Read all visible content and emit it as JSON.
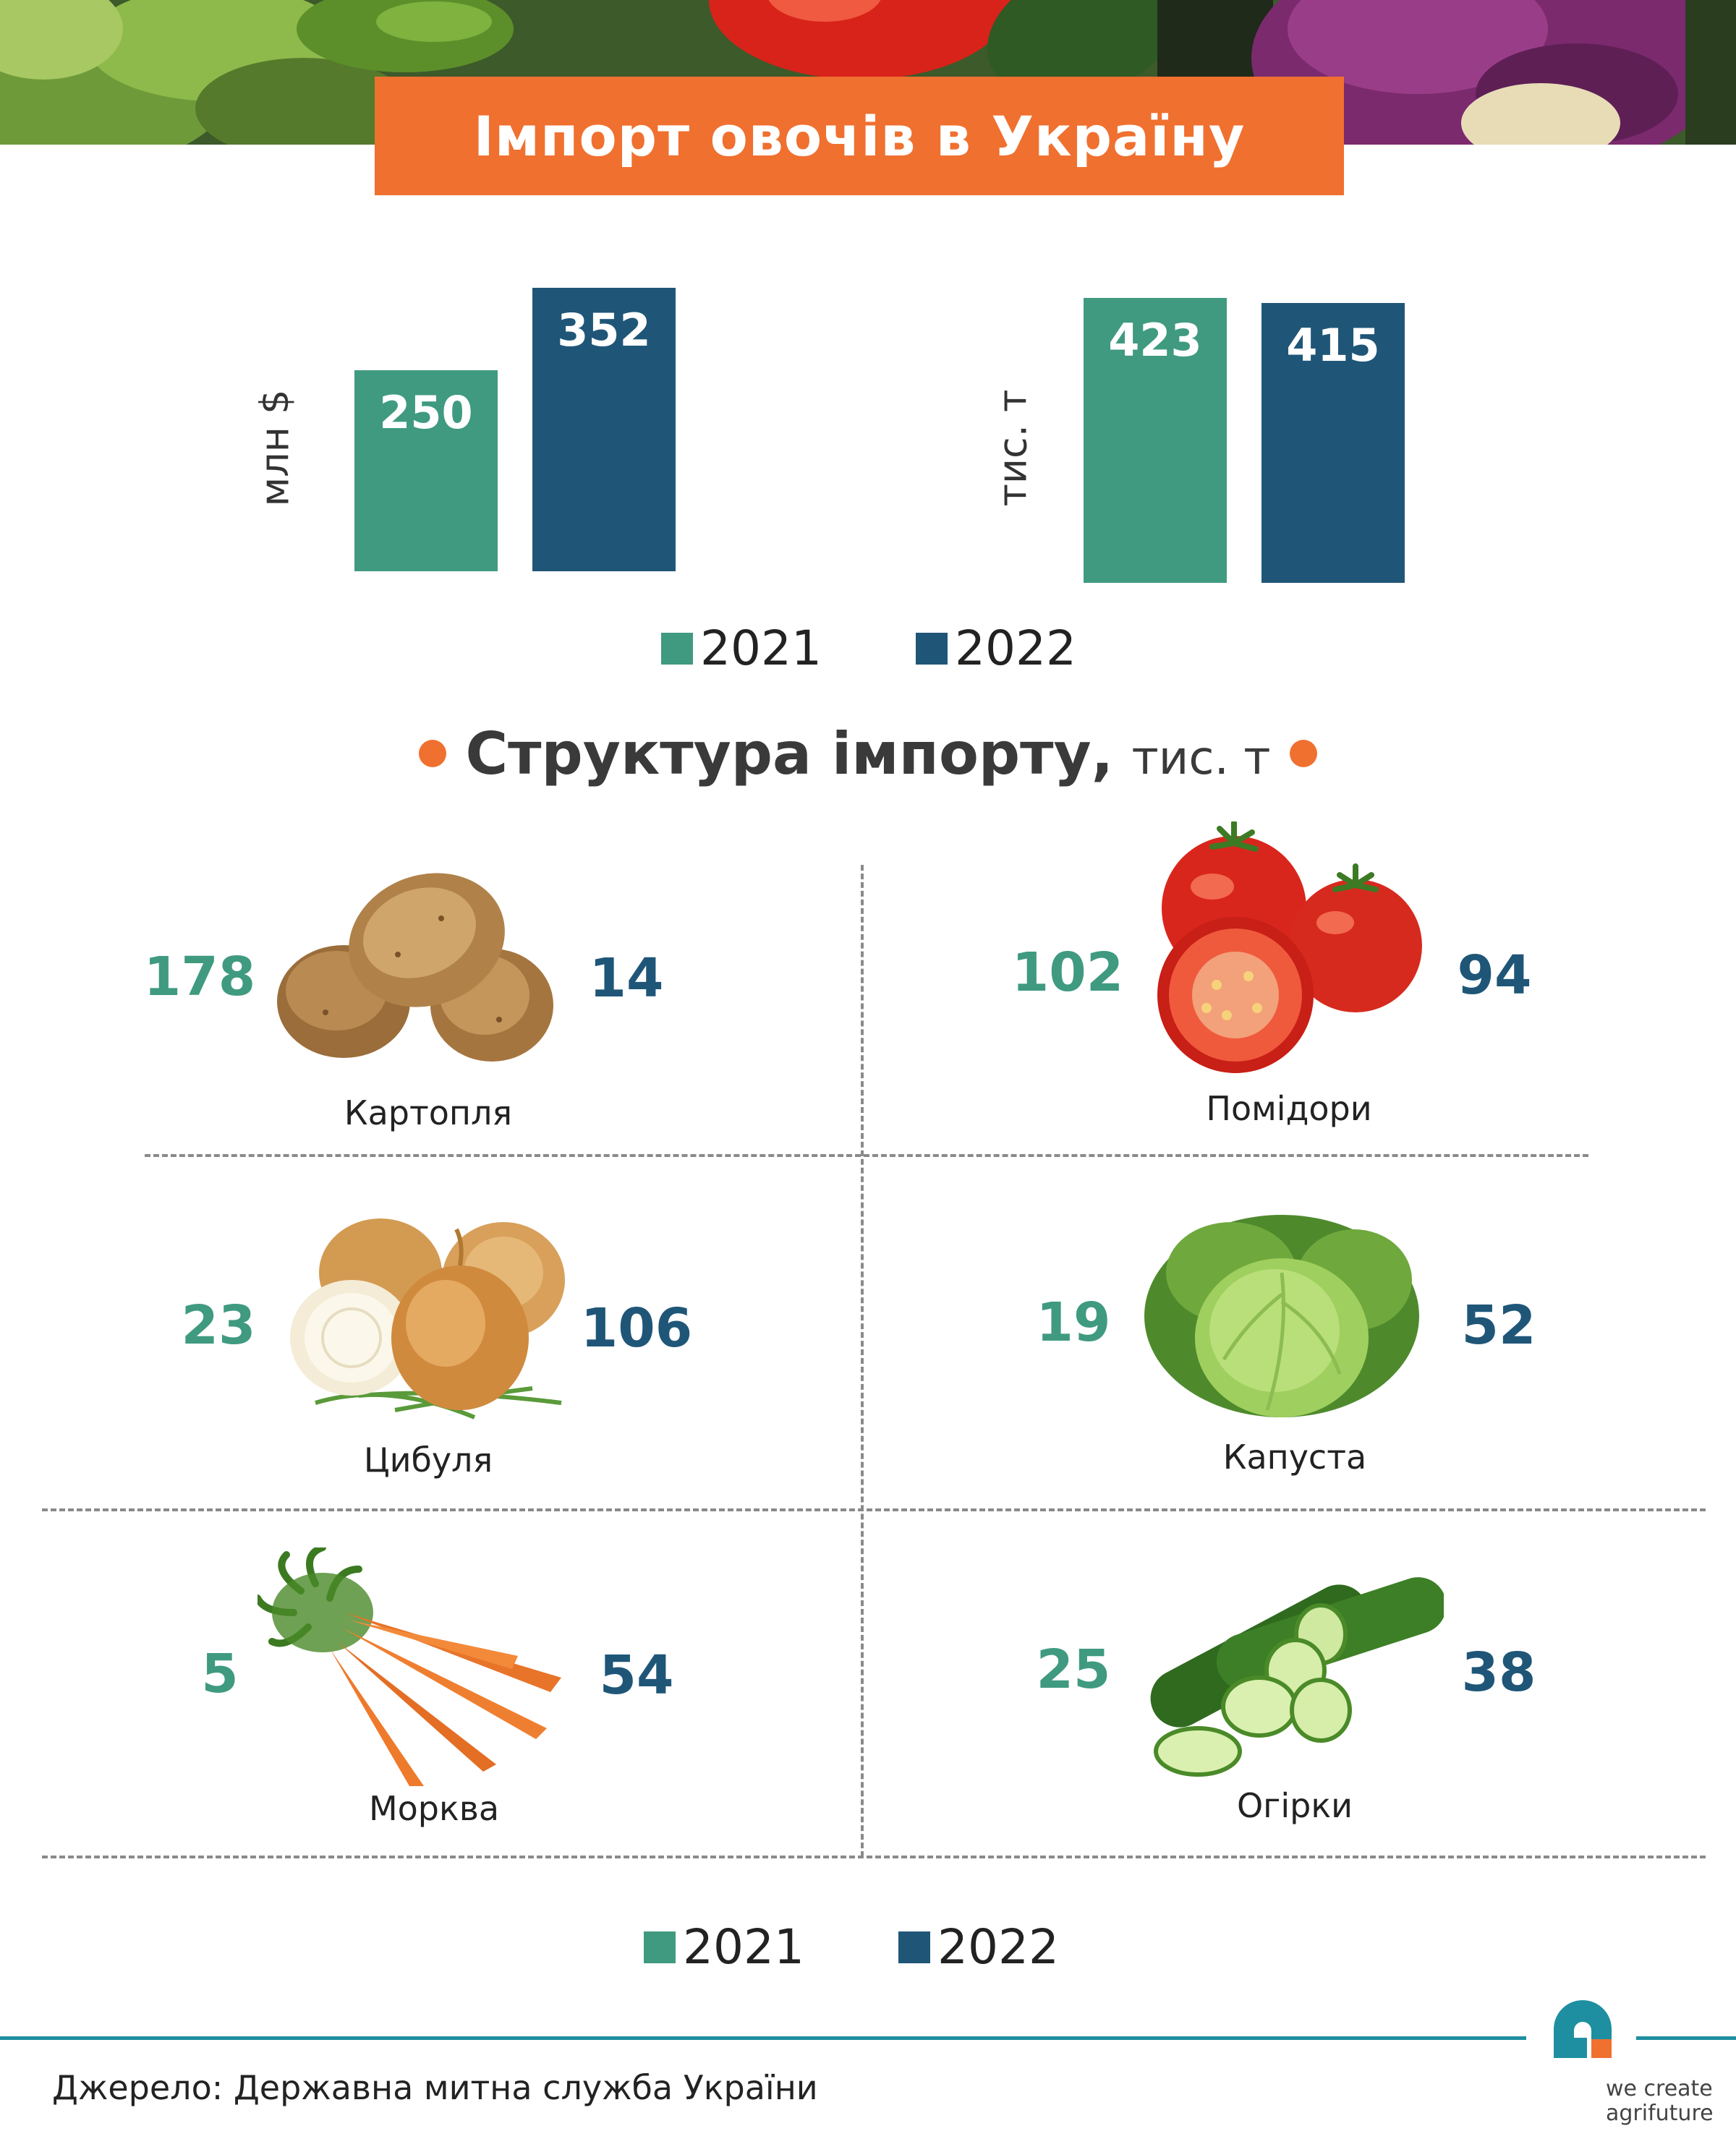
{
  "title": "Імпорт овочів в Україну",
  "colors": {
    "y2021": "#3f9a80",
    "y2022": "#1f5678",
    "accent": "#f07030"
  },
  "value_chart": {
    "unit": "млн $",
    "values": {
      "y2021": "250",
      "y2022": "352"
    }
  },
  "volume_chart": {
    "unit": "тис. т",
    "values": {
      "y2021": "423",
      "y2022": "415"
    }
  },
  "legend": {
    "y2021": "2021",
    "y2022": "2022"
  },
  "structure": {
    "title": "Структура імпорту,",
    "unit": "тис. т"
  },
  "chart_data": [
    {
      "type": "bar",
      "ylabel": "млн $",
      "categories": [
        ""
      ],
      "series": [
        {
          "name": "2021",
          "values": [
            250
          ]
        },
        {
          "name": "2022",
          "values": [
            352
          ]
        }
      ]
    },
    {
      "type": "bar",
      "ylabel": "тис. т",
      "categories": [
        ""
      ],
      "series": [
        {
          "name": "2021",
          "values": [
            423
          ]
        },
        {
          "name": "2022",
          "values": [
            415
          ]
        }
      ]
    },
    {
      "type": "table",
      "title": "Структура імпорту,",
      "unit": "тис. т",
      "categories": [
        "Картопля",
        "Помідори",
        "Цибуля",
        "Капуста",
        "Морква",
        "Огірки"
      ],
      "series": [
        {
          "name": "2021",
          "values": [
            178,
            102,
            23,
            19,
            5,
            25
          ]
        },
        {
          "name": "2022",
          "values": [
            14,
            94,
            106,
            52,
            54,
            38
          ]
        }
      ]
    }
  ],
  "items": [
    {
      "name": "Картопля",
      "v2021": "178",
      "v2022": "14",
      "icon": "potato-icon"
    },
    {
      "name": "Помідори",
      "v2021": "102",
      "v2022": "94",
      "icon": "tomato-icon"
    },
    {
      "name": "Цибуля",
      "v2021": "23",
      "v2022": "106",
      "icon": "onion-icon"
    },
    {
      "name": "Капуста",
      "v2021": "19",
      "v2022": "52",
      "icon": "cabbage-icon"
    },
    {
      "name": "Морква",
      "v2021": "5",
      "v2022": "54",
      "icon": "carrot-icon"
    },
    {
      "name": "Огірки",
      "v2021": "25",
      "v2022": "38",
      "icon": "cucumber-icon"
    }
  ],
  "source": "Джерело: Державна митна служба України",
  "logo": {
    "line1": "we create",
    "line2": "agrifuture"
  }
}
